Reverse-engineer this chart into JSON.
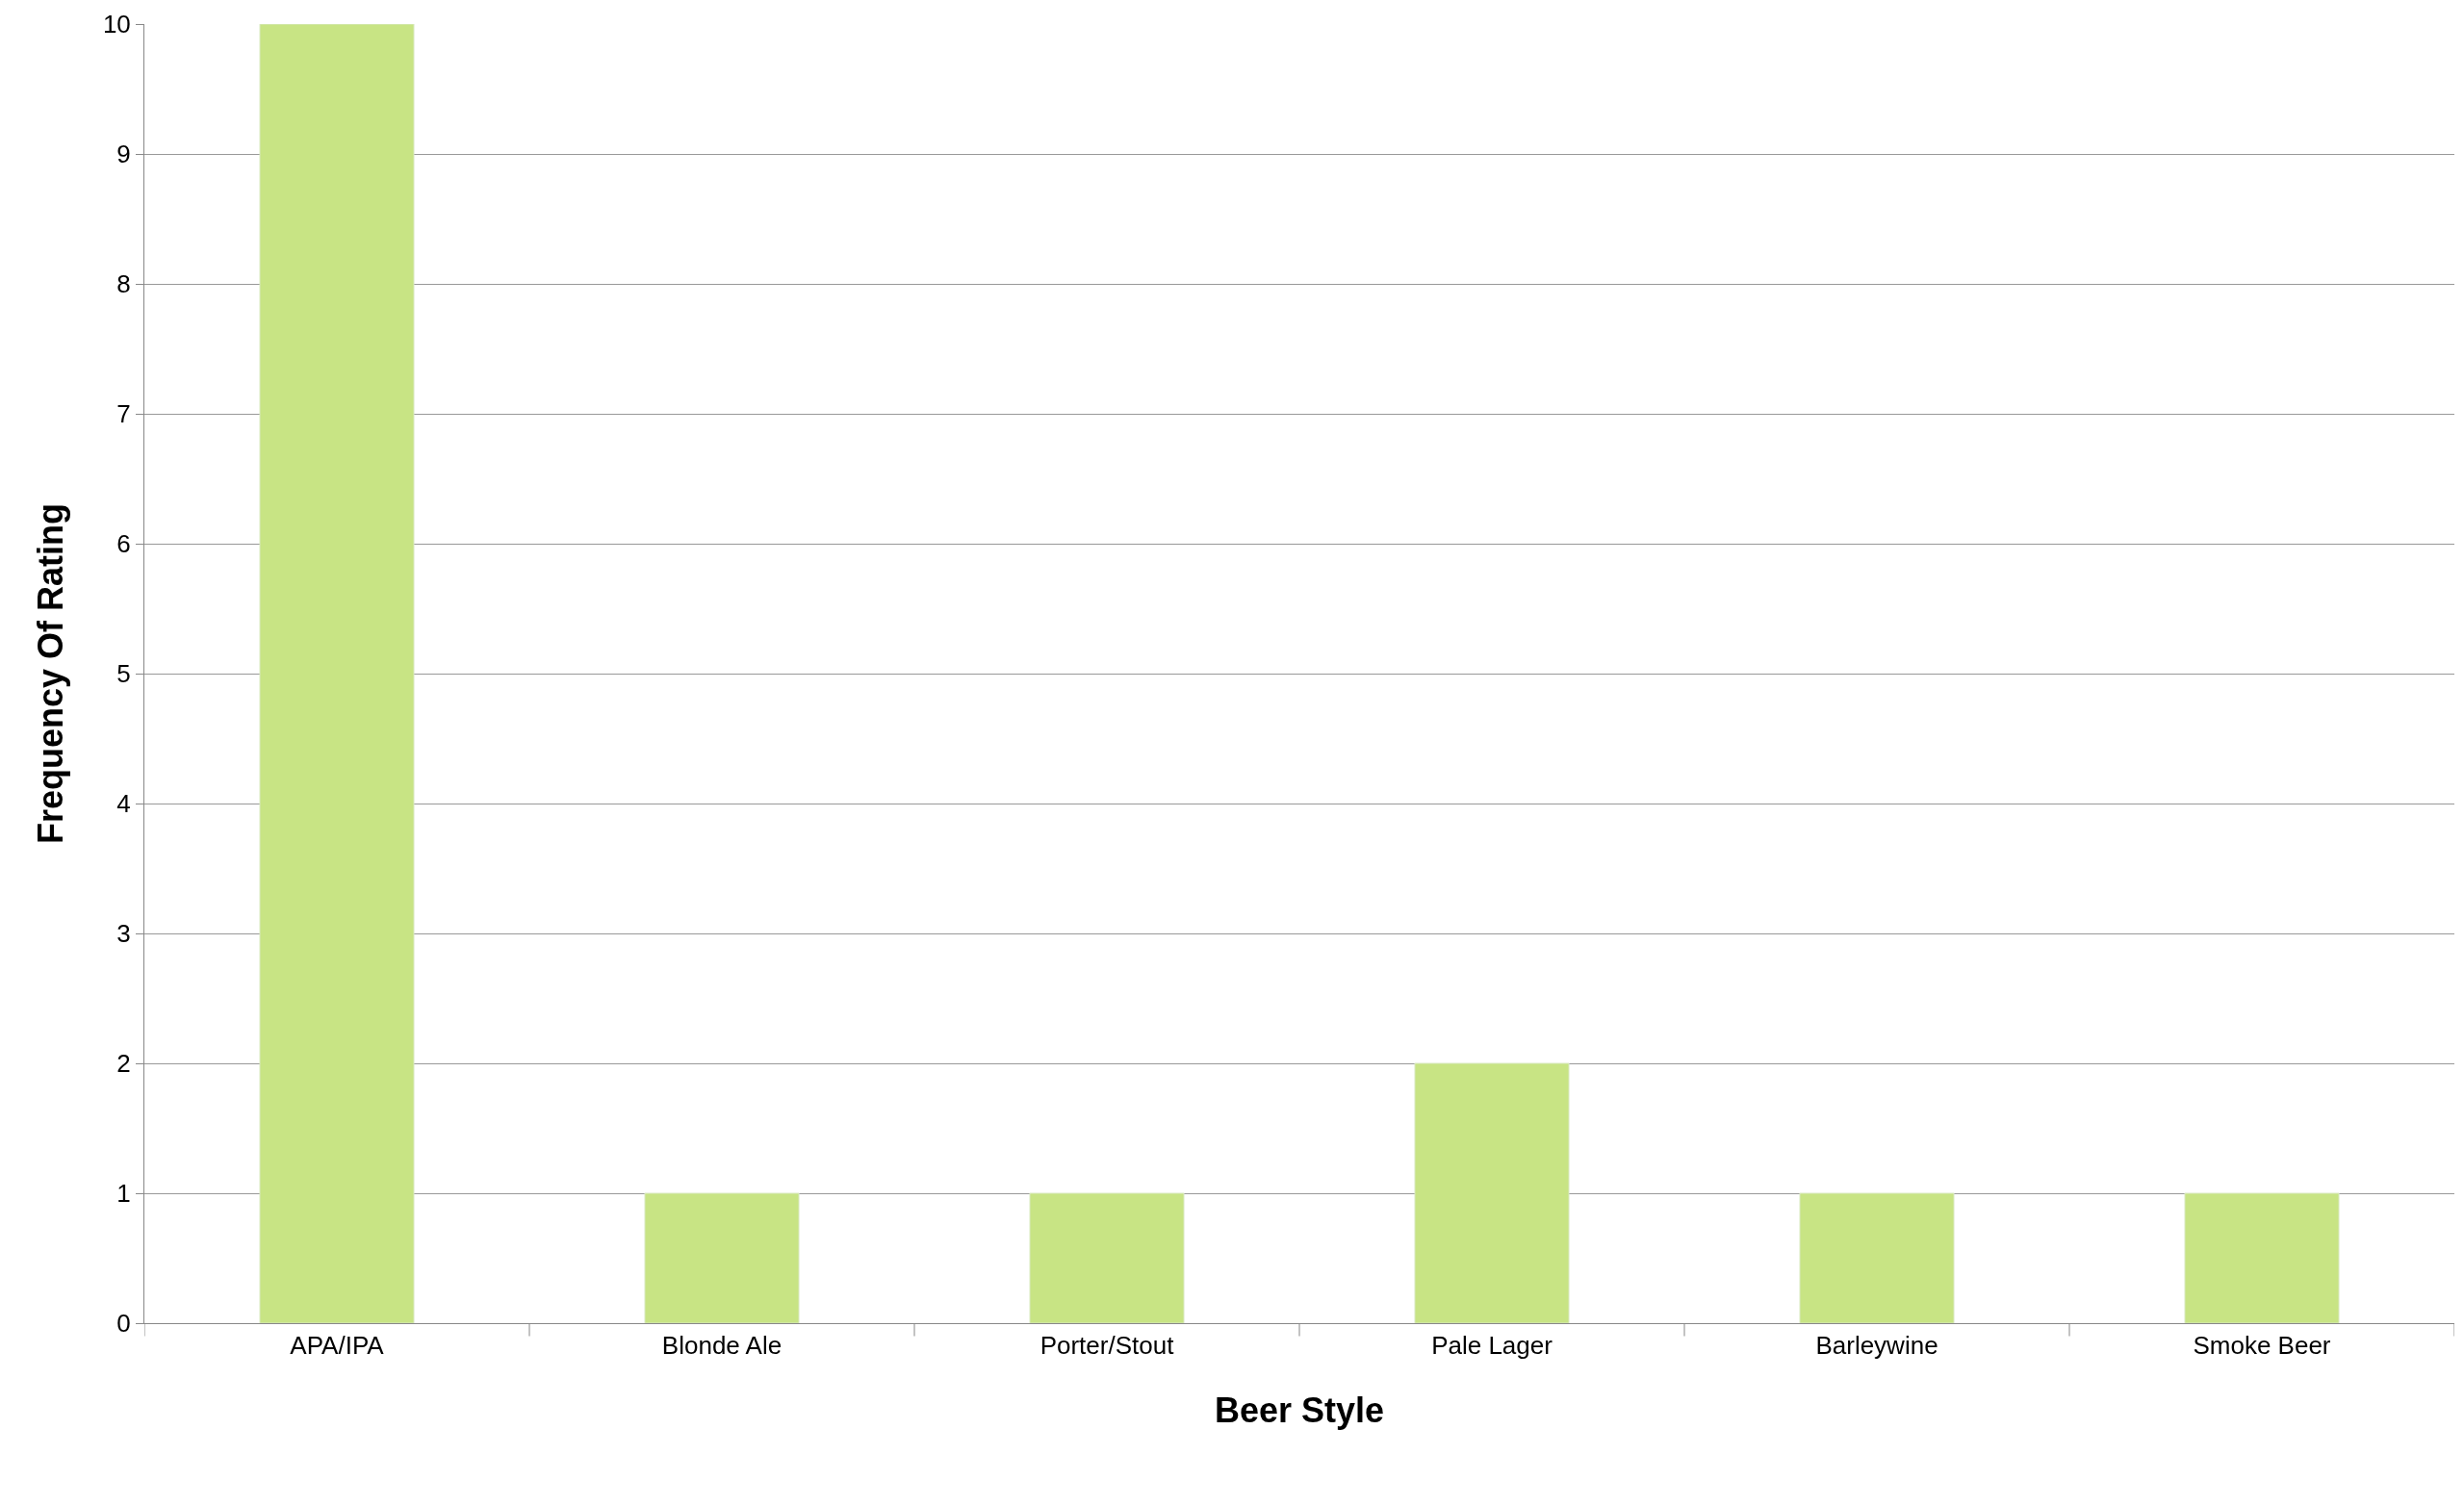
{
  "chart_data": {
    "type": "bar",
    "xlabel": "Beer Style",
    "ylabel": "Frequency Of Rating",
    "categories": [
      "APA/IPA",
      "Blonde Ale",
      "Porter/Stout",
      "Pale Lager",
      "Barleywine",
      "Smoke Beer"
    ],
    "values": [
      10,
      1,
      1,
      2,
      1,
      1
    ],
    "color": "#c8e484",
    "ylim": [
      0,
      10
    ],
    "yticks": [
      0,
      1,
      2,
      3,
      4,
      5,
      6,
      7,
      8,
      9,
      10
    ],
    "grid": "y",
    "legend": false
  }
}
